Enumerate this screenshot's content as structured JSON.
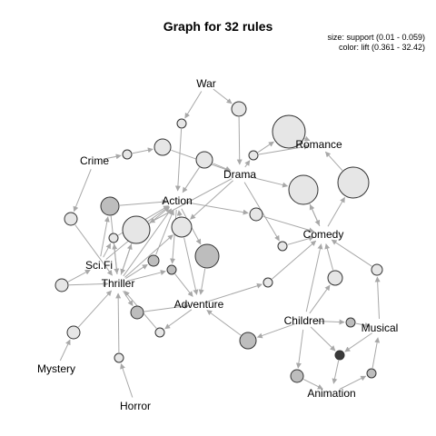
{
  "title": "Graph for 32 rules",
  "legend": {
    "size": "size: support (0.01 - 0.059)",
    "color": "color: lift (0.361 - 32.42)"
  },
  "items": [
    {
      "id": "war",
      "label": "War"
    },
    {
      "id": "crime",
      "label": "Crime"
    },
    {
      "id": "drama",
      "label": "Drama"
    },
    {
      "id": "romance",
      "label": "Romance"
    },
    {
      "id": "action",
      "label": "Action"
    },
    {
      "id": "comedy",
      "label": "Comedy"
    },
    {
      "id": "scifi",
      "label": "Sci.Fi"
    },
    {
      "id": "thriller",
      "label": "Thriller"
    },
    {
      "id": "adventure",
      "label": "Adventure"
    },
    {
      "id": "children",
      "label": "Children"
    },
    {
      "id": "musical",
      "label": "Musical"
    },
    {
      "id": "mystery",
      "label": "Mystery"
    },
    {
      "id": "animation",
      "label": "Animation"
    },
    {
      "id": "horror",
      "label": "Horror"
    }
  ],
  "colors": {
    "low_lift": "#e6e6e6",
    "mid_lift": "#bdbdbd",
    "high_lift": "#3a3a3a",
    "edge": "#a8a8a8"
  }
}
